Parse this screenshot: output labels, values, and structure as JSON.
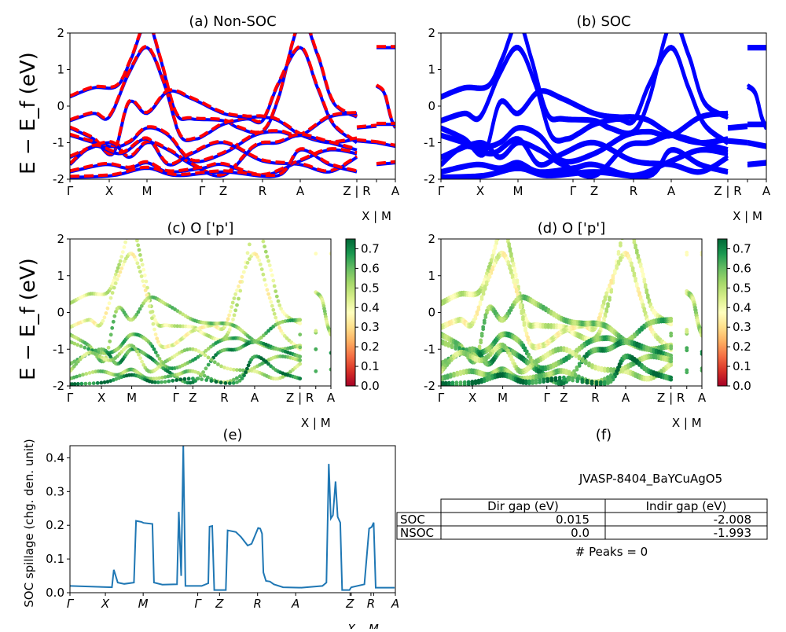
{
  "chart_data": {
    "type": "line",
    "kpath_ticks": [
      {
        "k": 0,
        "label": "Γ"
      },
      {
        "k": 0.5,
        "label": "X"
      },
      {
        "k": 0.98,
        "label": "M"
      },
      {
        "k": 1.68,
        "label": "Γ"
      },
      {
        "k": 1.95,
        "label": "Z"
      },
      {
        "k": 2.45,
        "label": "R"
      },
      {
        "k": 2.93,
        "label": "A"
      },
      {
        "k": 3.65,
        "label": "Z | R"
      },
      {
        "k": 3.9,
        "label": "X | M"
      },
      {
        "k": 4.14,
        "label": "A"
      }
    ],
    "energy_ylim": [
      -2,
      2
    ],
    "energy_yticks": [
      2,
      1,
      0,
      -1,
      -2
    ],
    "energy_ylabel": "E − E_f (eV)",
    "bands": [
      {
        "w": 0.45,
        "pts": [
          [
            0,
            0.25
          ],
          [
            0.3,
            0.5
          ],
          [
            0.6,
            0.55
          ],
          [
            0.78,
            1.3
          ],
          [
            0.98,
            2.3
          ],
          [
            1.15,
            1.3
          ],
          [
            1.35,
            -0.2
          ],
          [
            1.55,
            -0.35
          ],
          [
            1.95,
            -0.4
          ],
          [
            2.15,
            -0.6
          ],
          [
            2.45,
            -0.7
          ],
          [
            2.65,
            0.2
          ],
          [
            2.93,
            2.3
          ],
          [
            3.15,
            1.4
          ],
          [
            3.35,
            0.1
          ],
          [
            3.65,
            -0.3
          ]
        ]
      },
      {
        "w": 0.4,
        "pts": [
          [
            0,
            -0.4
          ],
          [
            0.3,
            -0.2
          ],
          [
            0.5,
            -0.3
          ],
          [
            0.75,
            0.9
          ],
          [
            0.98,
            1.6
          ],
          [
            1.2,
            0.6
          ],
          [
            1.4,
            -0.8
          ],
          [
            1.6,
            -0.9
          ],
          [
            1.75,
            -0.75
          ],
          [
            1.95,
            -0.5
          ],
          [
            2.25,
            -0.35
          ],
          [
            2.45,
            -0.4
          ],
          [
            2.65,
            0.6
          ],
          [
            2.93,
            1.6
          ],
          [
            3.15,
            0.5
          ],
          [
            3.35,
            -0.5
          ],
          [
            3.65,
            -1.0
          ]
        ]
      },
      {
        "w": 0.55,
        "pts": [
          [
            0,
            -0.6
          ],
          [
            0.3,
            -0.9
          ],
          [
            0.55,
            -1.3
          ],
          [
            0.75,
            0.1
          ],
          [
            0.98,
            -0.2
          ],
          [
            1.25,
            0.4
          ],
          [
            1.55,
            0.2
          ],
          [
            1.95,
            -0.2
          ],
          [
            2.25,
            -0.3
          ],
          [
            2.45,
            -0.3
          ],
          [
            2.65,
            -0.4
          ],
          [
            2.95,
            -0.8
          ],
          [
            3.3,
            -1.0
          ],
          [
            3.65,
            -0.9
          ]
        ]
      },
      {
        "w": 0.6,
        "pts": [
          [
            0,
            -0.8
          ],
          [
            0.5,
            -1.1
          ],
          [
            0.75,
            -1.0
          ],
          [
            0.98,
            -0.6
          ],
          [
            1.25,
            -0.8
          ],
          [
            1.55,
            -1.5
          ],
          [
            1.95,
            -1.3
          ],
          [
            2.35,
            -0.8
          ],
          [
            2.65,
            -0.7
          ],
          [
            2.93,
            -0.8
          ],
          [
            3.3,
            -0.3
          ],
          [
            3.65,
            -0.2
          ]
        ]
      },
      {
        "w": 0.65,
        "pts": [
          [
            0,
            -1.4
          ],
          [
            0.5,
            -1.0
          ],
          [
            0.75,
            -1.4
          ],
          [
            0.98,
            -1.0
          ],
          [
            1.25,
            -1.2
          ],
          [
            1.55,
            -1.6
          ],
          [
            1.95,
            -1.9
          ],
          [
            2.35,
            -1.1
          ],
          [
            2.65,
            -1.0
          ],
          [
            2.93,
            -0.8
          ],
          [
            3.3,
            -1.0
          ],
          [
            3.65,
            -1.2
          ]
        ]
      },
      {
        "w": 0.5,
        "pts": [
          [
            0,
            -1.6
          ],
          [
            0.3,
            -1.1
          ],
          [
            0.65,
            -1.3
          ],
          [
            0.98,
            -0.9
          ],
          [
            1.25,
            -1.6
          ],
          [
            1.55,
            -1.3
          ],
          [
            1.95,
            -1.0
          ],
          [
            2.45,
            -1.5
          ],
          [
            2.93,
            -1.6
          ],
          [
            3.3,
            -1.8
          ],
          [
            3.65,
            -1.4
          ]
        ]
      },
      {
        "w": 0.55,
        "pts": [
          [
            0,
            -1.8
          ],
          [
            0.45,
            -1.6
          ],
          [
            0.75,
            -1.7
          ],
          [
            0.98,
            -1.55
          ],
          [
            1.25,
            -1.8
          ],
          [
            1.68,
            -1.7
          ],
          [
            1.95,
            -1.6
          ],
          [
            2.45,
            -1.9
          ],
          [
            2.93,
            -1.5
          ],
          [
            3.3,
            -1.2
          ],
          [
            3.65,
            -1.3
          ]
        ]
      },
      {
        "w": 0.7,
        "pts": [
          [
            0,
            -1.95
          ],
          [
            0.55,
            -1.9
          ],
          [
            0.98,
            -1.7
          ],
          [
            1.35,
            -1.9
          ],
          [
            1.95,
            -1.8
          ],
          [
            2.65,
            -1.9
          ],
          [
            2.93,
            -1.2
          ],
          [
            3.3,
            -1.6
          ],
          [
            3.65,
            -1.8
          ]
        ]
      },
      {
        "w": 0.5,
        "pts": [
          [
            3.65,
            -0.6
          ],
          [
            3.9,
            -0.55
          ]
        ]
      },
      {
        "w": 0.55,
        "pts": [
          [
            3.65,
            -0.95
          ],
          [
            3.9,
            -1.0
          ]
        ]
      },
      {
        "w": 0.5,
        "pts": [
          [
            3.9,
            0.55
          ],
          [
            4.0,
            0.35
          ],
          [
            4.08,
            -0.3
          ],
          [
            4.14,
            -0.6
          ]
        ]
      },
      {
        "w": 0.45,
        "pts": [
          [
            3.9,
            1.6
          ],
          [
            4.14,
            1.6
          ]
        ]
      },
      {
        "w": 0.5,
        "pts": [
          [
            3.9,
            -0.5
          ],
          [
            4.14,
            -0.5
          ]
        ]
      },
      {
        "w": 0.6,
        "pts": [
          [
            3.9,
            -1.0
          ],
          [
            4.14,
            -1.1
          ]
        ]
      },
      {
        "w": 0.55,
        "pts": [
          [
            3.9,
            -1.6
          ],
          [
            4.14,
            -1.55
          ]
        ]
      }
    ],
    "panels": [
      {
        "id": "a",
        "title": "(a) Non-SOC",
        "type": "line",
        "colors": {
          "soc": "#0000ff",
          "nsoc": "#ff0000"
        }
      },
      {
        "id": "b",
        "title": "(b) SOC",
        "type": "line",
        "colors": {
          "soc": "#0000ff"
        }
      },
      {
        "id": "c",
        "title": "(c)  O ['p']",
        "type": "scatter",
        "colormap": "RdYlGn",
        "clim": [
          0,
          0.75
        ],
        "cbar_ticks": [
          "0.0",
          "0.1",
          "0.2",
          "0.3",
          "0.4",
          "0.5",
          "0.6",
          "0.7"
        ]
      },
      {
        "id": "d",
        "title": "(d) O ['p']",
        "type": "scatter",
        "colormap": "RdYlGn",
        "clim": [
          0,
          0.75
        ],
        "cbar_ticks": [
          "0.0",
          "0.1",
          "0.2",
          "0.3",
          "0.4",
          "0.5",
          "0.6",
          "0.7"
        ]
      }
    ],
    "spillage": {
      "id": "e",
      "title": "(e)",
      "type": "line",
      "color": "#1f77b4",
      "ylabel": "SOC spillage (chg. den. unit)",
      "ylim": [
        0,
        0.436
      ],
      "yticks": [
        "0.0",
        "0.1",
        "0.2",
        "0.3",
        "0.4"
      ],
      "xticks": [
        {
          "k": 0,
          "label": "Γ"
        },
        {
          "k": 0.45,
          "label": "X"
        },
        {
          "k": 0.93,
          "label": "M"
        },
        {
          "k": 1.623,
          "label": "Γ"
        },
        {
          "k": 1.9,
          "label": "Z"
        },
        {
          "k": 2.383,
          "label": "R"
        },
        {
          "k": 2.867,
          "label": "A"
        },
        {
          "k": 3.557,
          "label": "Z"
        },
        {
          "k": 3.573,
          "label": "X"
        },
        {
          "k": 3.823,
          "label": "R"
        },
        {
          "k": 3.857,
          "label": "M"
        },
        {
          "k": 4.133,
          "label": "A"
        }
      ],
      "points": [
        [
          0,
          0.02
        ],
        [
          0.533,
          0.016
        ],
        [
          0.557,
          0.068
        ],
        [
          0.607,
          0.03
        ],
        [
          0.69,
          0.026
        ],
        [
          0.813,
          0.03
        ],
        [
          0.84,
          0.213
        ],
        [
          0.907,
          0.21
        ],
        [
          0.933,
          0.207
        ],
        [
          1.047,
          0.204
        ],
        [
          1.067,
          0.03
        ],
        [
          1.173,
          0.024
        ],
        [
          1.36,
          0.025
        ],
        [
          1.383,
          0.24
        ],
        [
          1.413,
          0.05
        ],
        [
          1.44,
          0.436
        ],
        [
          1.467,
          0.02
        ],
        [
          1.673,
          0.02
        ],
        [
          1.757,
          0.028
        ],
        [
          1.773,
          0.196
        ],
        [
          1.807,
          0.198
        ],
        [
          1.833,
          0.008
        ],
        [
          1.98,
          0.008
        ],
        [
          2.003,
          0.185
        ],
        [
          2.107,
          0.18
        ],
        [
          2.173,
          0.165
        ],
        [
          2.257,
          0.14
        ],
        [
          2.307,
          0.145
        ],
        [
          2.39,
          0.192
        ],
        [
          2.417,
          0.19
        ],
        [
          2.44,
          0.175
        ],
        [
          2.457,
          0.06
        ],
        [
          2.49,
          0.035
        ],
        [
          2.54,
          0.033
        ],
        [
          2.59,
          0.025
        ],
        [
          2.707,
          0.016
        ],
        [
          2.94,
          0.015
        ],
        [
          3.207,
          0.02
        ],
        [
          3.257,
          0.03
        ],
        [
          3.287,
          0.382
        ],
        [
          3.313,
          0.22
        ],
        [
          3.34,
          0.23
        ],
        [
          3.373,
          0.33
        ],
        [
          3.4,
          0.225
        ],
        [
          3.433,
          0.208
        ],
        [
          3.457,
          0.008
        ],
        [
          3.55,
          0.008
        ],
        [
          3.573,
          0.016
        ],
        [
          3.74,
          0.025
        ],
        [
          3.8,
          0.19
        ],
        [
          3.833,
          0.195
        ],
        [
          3.857,
          0.208
        ],
        [
          3.883,
          0.015
        ],
        [
          4.123,
          0.015
        ]
      ]
    },
    "summary": {
      "id": "f",
      "title": "(f)",
      "material": "JVASP-8404_BaYCuAgO5",
      "table": {
        "columns": [
          "",
          "Dir gap (eV)",
          "Indir gap (eV)"
        ],
        "rows": [
          [
            "SOC",
            "0.015",
            "-2.008"
          ],
          [
            "NSOC",
            "0.0",
            "-1.993"
          ]
        ]
      },
      "peaks": "# Peaks = 0"
    }
  }
}
